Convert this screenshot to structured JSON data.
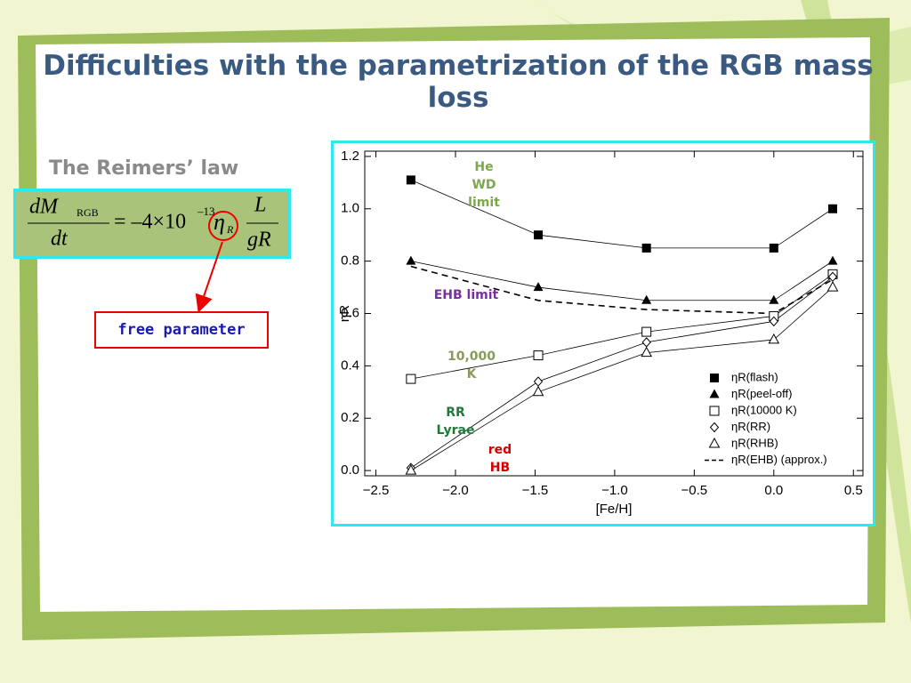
{
  "title": "Difficulties with the parametrization of the RGB mass loss",
  "subtitle": "The Reimers’ law",
  "formula": {
    "numerator": "dM",
    "numerator_sub": "RGB",
    "denominator": "dt",
    "coefficient": "= –4×10",
    "exponent": "–13",
    "eta": "η",
    "eta_sub": "R",
    "L": "L",
    "gR": "gR"
  },
  "callout": "free parameter",
  "chart_data": {
    "type": "line",
    "xlabel": "[Fe/H]",
    "ylabel": "ηR",
    "x": [
      -2.28,
      -1.48,
      -0.8,
      0.0,
      0.37
    ],
    "series": [
      {
        "name": "ηR(flash)",
        "color": "#000000",
        "marker": "square-filled",
        "values": [
          1.11,
          0.9,
          0.85,
          0.85,
          1.0
        ]
      },
      {
        "name": "ηR(peel-off)",
        "color": "#000000",
        "marker": "triangle-filled",
        "values": [
          0.8,
          0.7,
          0.65,
          0.65,
          0.8
        ]
      },
      {
        "name": "ηR(10000 K)",
        "color": "#000000",
        "marker": "square-open",
        "values": [
          0.35,
          0.44,
          0.53,
          0.59,
          0.75
        ]
      },
      {
        "name": "ηR(RR)",
        "color": "#000000",
        "marker": "diamond-open",
        "values": [
          0.01,
          0.34,
          0.49,
          0.57,
          0.74
        ]
      },
      {
        "name": "ηR(RHB)",
        "color": "#000000",
        "marker": "triangle-open",
        "values": [
          0.0,
          0.3,
          0.45,
          0.5,
          0.7
        ]
      },
      {
        "name": "ηR(EHB) (approx.)",
        "color": "#000000",
        "marker": "none",
        "dashed": true,
        "values": [
          0.78,
          0.65,
          0.615,
          0.6,
          0.73
        ]
      }
    ],
    "xlim": [
      -2.57,
      0.56
    ],
    "xticks": [
      {
        "value": -2.5,
        "label": "−2.5"
      },
      {
        "value": -2.0,
        "label": "−2.0"
      },
      {
        "value": -1.5,
        "label": "−1.5"
      },
      {
        "value": -1.0,
        "label": "−1.0"
      },
      {
        "value": -0.5,
        "label": "−0.5"
      },
      {
        "value": 0.0,
        "label": "0.0"
      },
      0.5
    ],
    "ylim": [
      -0.02,
      1.22
    ],
    "yticks": [
      {
        "value": 0.0,
        "label": "0.0"
      },
      0.2,
      0.4,
      0.6,
      0.8,
      {
        "value": 1.0,
        "label": "1.0"
      },
      1.2
    ],
    "legend": "lower right",
    "annotations": [
      {
        "text": "He WD limit",
        "color": "#7aa84a"
      },
      {
        "text": "EHB limit",
        "color": "#7a2fa0"
      },
      {
        "text": "10,000 K",
        "color": "#8a9a5a"
      },
      {
        "text": "RR Lyrae",
        "color": "#1f7a3a"
      },
      {
        "text": "red HB",
        "color": "#d40000"
      }
    ]
  }
}
